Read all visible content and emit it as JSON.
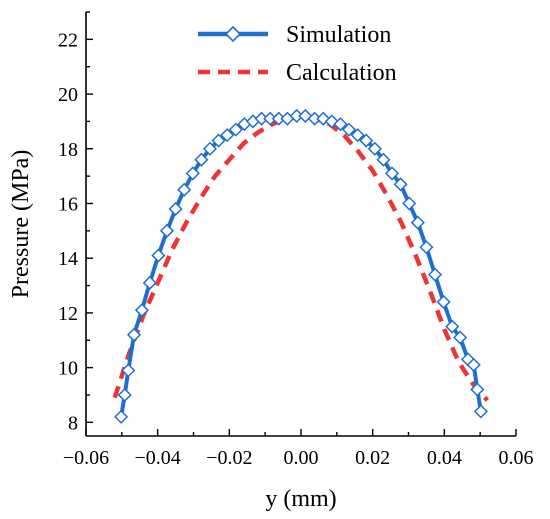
{
  "chart_data": {
    "type": "line",
    "xlabel": "y (mm)",
    "ylabel": "Pressure (MPa)",
    "xlim": [
      -0.06,
      0.06
    ],
    "ylim": [
      7.5,
      23.0
    ],
    "xticks": [
      -0.06,
      -0.04,
      -0.02,
      0.0,
      0.02,
      0.04,
      0.06
    ],
    "xtick_labels": [
      "−0.06",
      "−0.04",
      "−0.02",
      "0.00",
      "0.02",
      "0.04",
      "0.06"
    ],
    "yticks": [
      8,
      10,
      12,
      14,
      16,
      18,
      20,
      22
    ],
    "ytick_labels": [
      "8",
      "10",
      "12",
      "14",
      "16",
      "18",
      "20",
      "22"
    ],
    "grid": false,
    "legend_position": "top-center",
    "series": [
      {
        "name": "Simulation",
        "style": "solid-with-diamond-markers",
        "color": "#1f6fd1",
        "x": [
          -0.0502,
          -0.0492,
          -0.0482,
          -0.0466,
          -0.0444,
          -0.0422,
          -0.0398,
          -0.0374,
          -0.035,
          -0.0326,
          -0.0302,
          -0.0278,
          -0.0254,
          -0.023,
          -0.0206,
          -0.0182,
          -0.0158,
          -0.0134,
          -0.011,
          -0.0086,
          -0.0062,
          -0.0038,
          -0.0012,
          0.0012,
          0.0038,
          0.0062,
          0.0086,
          0.011,
          0.0134,
          0.0158,
          0.0182,
          0.0206,
          0.023,
          0.0254,
          0.0278,
          0.0302,
          0.0326,
          0.035,
          0.0374,
          0.0398,
          0.0422,
          0.0444,
          0.0466,
          0.0482,
          0.0492,
          0.0502
        ],
        "y": [
          8.2,
          9.0,
          9.9,
          11.2,
          12.1,
          13.1,
          14.1,
          15.0,
          15.8,
          16.5,
          17.1,
          17.6,
          18.0,
          18.3,
          18.5,
          18.7,
          18.9,
          19.0,
          19.1,
          19.1,
          19.1,
          19.1,
          19.2,
          19.2,
          19.1,
          19.1,
          19.0,
          18.9,
          18.7,
          18.5,
          18.3,
          18.0,
          17.6,
          17.1,
          16.7,
          16.0,
          15.3,
          14.4,
          13.4,
          12.4,
          11.5,
          11.1,
          10.3,
          10.1,
          9.2,
          8.4
        ]
      },
      {
        "name": "Calculation",
        "style": "dashed",
        "color": "#ee3535",
        "x": [
          -0.052,
          -0.048,
          -0.044,
          -0.04,
          -0.036,
          -0.032,
          -0.028,
          -0.024,
          -0.02,
          -0.016,
          -0.012,
          -0.008,
          -0.004,
          0.0,
          0.004,
          0.008,
          0.012,
          0.016,
          0.02,
          0.024,
          0.028,
          0.032,
          0.036,
          0.04,
          0.044,
          0.048,
          0.052
        ],
        "y": [
          8.9,
          10.5,
          11.9,
          13.1,
          14.3,
          15.3,
          16.2,
          17.0,
          17.6,
          18.2,
          18.6,
          18.9,
          19.1,
          19.2,
          19.1,
          18.9,
          18.5,
          17.9,
          17.2,
          16.3,
          15.3,
          14.1,
          12.8,
          11.4,
          10.2,
          9.4,
          8.8
        ]
      }
    ]
  }
}
